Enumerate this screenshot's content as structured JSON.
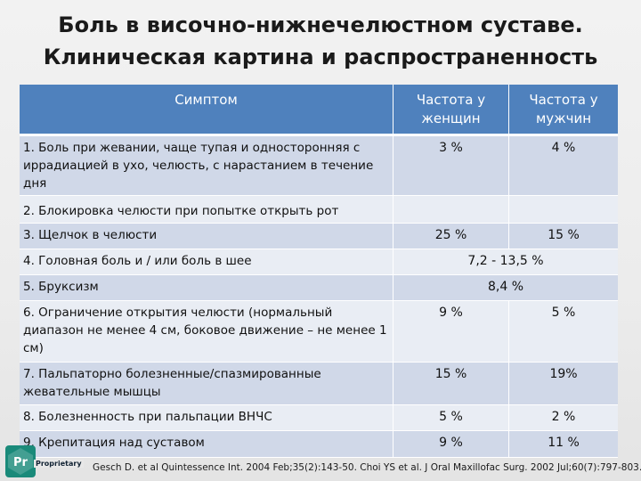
{
  "title": {
    "line1": "Боль в височно-нижнечелюстном суставе.",
    "line2": "Клиническая картина и распространенность"
  },
  "table": {
    "headers": [
      "Симптом",
      "Частота у женщин",
      "Частота у мужчин"
    ],
    "rows": [
      {
        "symptom": "1. Боль при жевании, чаще тупая и односторонняя с иррадиацией в ухо, челюсть, с нарастанием в течение дня",
        "women": "3 %",
        "men": "4 %"
      },
      {
        "symptom": "2. Блокировка челюсти при попытке открыть рот",
        "women": "",
        "men": ""
      },
      {
        "symptom": "3. Щелчок в челюсти",
        "women": "25 %",
        "men": "15 %"
      },
      {
        "symptom": "4. Головная боль и / или боль в шее",
        "combined": "7,2 - 13,5 %"
      },
      {
        "symptom": "5. Бруксизм",
        "combined": "8,4 %"
      },
      {
        "symptom": "6. Ограничение открытия челюсти (нормальный диапазон не менее 4 см, боковое движение – не менее 1 см)",
        "women": "9 %",
        "men": "5 %"
      },
      {
        "symptom": "7. Пальпаторно болезненные/спазмированные жевательные мышцы",
        "women": "15 %",
        "men": "19%"
      },
      {
        "symptom": "8. Болезненность при пальпации ВНЧС",
        "women": "5 %",
        "men": "2 %"
      },
      {
        "symptom": "9. Крепитация над суставом",
        "women": "9 %",
        "men": "11 %"
      }
    ]
  },
  "logo": {
    "text": "Proprietary",
    "mark": "Pr"
  },
  "citation": "Gesch D. et al Quintessence Int. 2004 Feb;35(2):143-50. Choi YS et al. J Oral Maxillofac Surg. 2002 Jul;60(7):797-803."
}
